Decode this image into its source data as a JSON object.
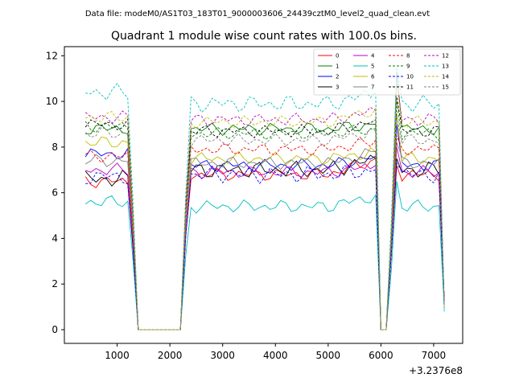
{
  "chart_data": {
    "type": "line",
    "suptitle": "Data file: modeM0/AS1T03_183T01_9000003606_24439cztM0_level2_quad_clean.evt",
    "title": "Quadrant 1 module wise count rates with 100.0s bins.",
    "xlabel": "",
    "ylabel": "",
    "x_offset_label": "+3.2376e8",
    "xlim": [
      0,
      7550
    ],
    "ylim": [
      -0.6,
      12.4
    ],
    "x_ticks": [
      1000,
      2000,
      3000,
      4000,
      5000,
      6000,
      7000
    ],
    "x_tick_labels": [
      "1000",
      "2000",
      "3000",
      "4000",
      "5000",
      "6000",
      "7000"
    ],
    "y_ticks": [
      0,
      2,
      4,
      6,
      8,
      10,
      12
    ],
    "y_tick_labels": [
      "0",
      "2",
      "4",
      "6",
      "8",
      "10",
      "12"
    ],
    "legend_position": "top-right",
    "x": [
      400,
      500,
      600,
      700,
      800,
      900,
      1000,
      1100,
      1200,
      1300,
      1400,
      1500,
      1600,
      1700,
      1800,
      1900,
      2000,
      2100,
      2200,
      2300,
      2400,
      2500,
      2600,
      2700,
      2800,
      2900,
      3000,
      3100,
      3200,
      3300,
      3400,
      3500,
      3600,
      3700,
      3800,
      3900,
      4000,
      4100,
      4200,
      4300,
      4400,
      4500,
      4600,
      4700,
      4800,
      4900,
      5000,
      5100,
      5200,
      5300,
      5400,
      5500,
      5600,
      5700,
      5800,
      5900,
      6000,
      6100,
      6200,
      6300,
      6400,
      6500,
      6600,
      6700,
      6800,
      6900,
      7000,
      7100,
      7200
    ],
    "series": [
      {
        "name": "0",
        "color": "#ff0000",
        "dash": false,
        "level": 6.8,
        "base": 6.5,
        "wiggle": 0.3,
        "peak": 7.5,
        "spike": 7.2,
        "end": 1.3
      },
      {
        "name": "1",
        "color": "#008000",
        "dash": false,
        "level": 8.8,
        "base": 8.8,
        "wiggle": 0.3,
        "peak": 9.0,
        "spike": 11.3,
        "end": 1.0
      },
      {
        "name": "2",
        "color": "#0000ff",
        "dash": false,
        "level": 7.2,
        "base": 7.7,
        "wiggle": 0.3,
        "peak": 7.6,
        "spike": 9.0,
        "end": 1.2
      },
      {
        "name": "3",
        "color": "#000000",
        "dash": false,
        "level": 7.0,
        "base": 6.6,
        "wiggle": 0.4,
        "peak": 7.5,
        "spike": 7.5,
        "end": 1.2
      },
      {
        "name": "4",
        "color": "#bf00bf",
        "dash": false,
        "level": 6.9,
        "base": 7.0,
        "wiggle": 0.3,
        "peak": 7.2,
        "spike": 8.0,
        "end": 1.3
      },
      {
        "name": "5",
        "color": "#00bfbf",
        "dash": false,
        "level": 5.4,
        "base": 5.6,
        "wiggle": 0.3,
        "peak": 5.9,
        "spike": 6.5,
        "end": 0.9
      },
      {
        "name": "6",
        "color": "#bfbf00",
        "dash": false,
        "level": 7.5,
        "base": 8.2,
        "wiggle": 0.3,
        "peak": 7.8,
        "spike": 9.5,
        "end": 1.1
      },
      {
        "name": "7",
        "color": "#808080",
        "dash": false,
        "level": 7.3,
        "base": 7.4,
        "wiggle": 0.3,
        "peak": 7.8,
        "spike": 8.2,
        "end": 1.2
      },
      {
        "name": "8",
        "color": "#ff0000",
        "dash": true,
        "level": 7.9,
        "base": 7.6,
        "wiggle": 0.3,
        "peak": 8.3,
        "spike": 8.5,
        "end": 1.3
      },
      {
        "name": "9",
        "color": "#008000",
        "dash": true,
        "level": 8.6,
        "base": 8.9,
        "wiggle": 0.3,
        "peak": 8.8,
        "spike": 10.0,
        "end": 1.0
      },
      {
        "name": "10",
        "color": "#0000ff",
        "dash": true,
        "level": 6.8,
        "base": 6.7,
        "wiggle": 0.4,
        "peak": 7.0,
        "spike": 7.3,
        "end": 1.2
      },
      {
        "name": "11",
        "color": "#000000",
        "dash": true,
        "level": 8.7,
        "base": 9.0,
        "wiggle": 0.3,
        "peak": 9.2,
        "spike": 10.2,
        "end": 1.1
      },
      {
        "name": "12",
        "color": "#bf00bf",
        "dash": true,
        "level": 9.2,
        "base": 9.3,
        "wiggle": 0.3,
        "peak": 9.6,
        "spike": 11.0,
        "end": 1.0
      },
      {
        "name": "13",
        "color": "#00bfbf",
        "dash": true,
        "level": 9.9,
        "base": 10.4,
        "wiggle": 0.4,
        "peak": 10.4,
        "spike": 11.5,
        "end": 0.8
      },
      {
        "name": "14",
        "color": "#bfbf00",
        "dash": true,
        "level": 9.1,
        "base": 9.3,
        "wiggle": 0.3,
        "peak": 9.7,
        "spike": 10.8,
        "end": 1.0
      },
      {
        "name": "15",
        "color": "#808080",
        "dash": true,
        "level": 8.3,
        "base": 8.6,
        "wiggle": 0.3,
        "peak": 8.7,
        "spike": 9.4,
        "end": 1.1
      }
    ]
  }
}
